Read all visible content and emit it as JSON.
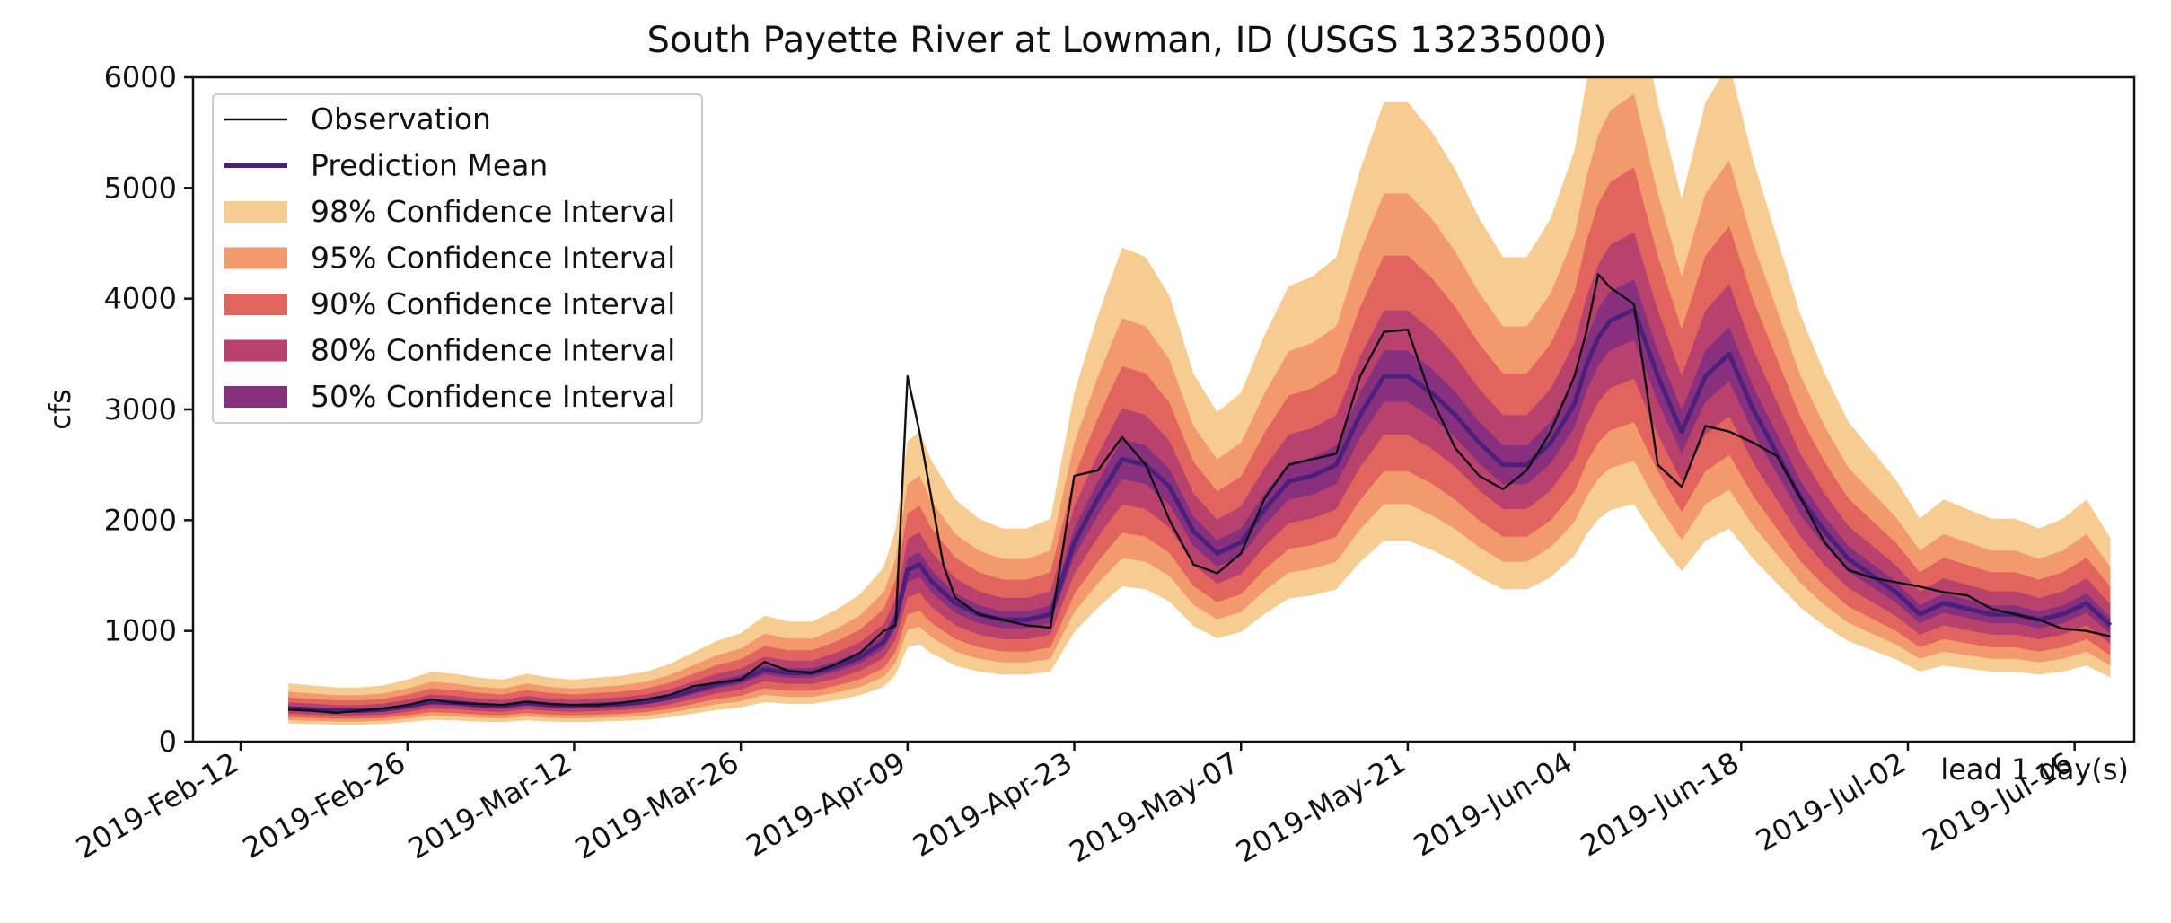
{
  "chart_data": {
    "type": "area",
    "title": "South Payette River at Lowman, ID (USGS 13235000)",
    "xlabel": "",
    "ylabel": "cfs",
    "annotation": "lead 1 day(s)",
    "xlim": [
      "2019-02-08",
      "2019-07-21"
    ],
    "ylim": [
      0,
      6000
    ],
    "yticks": [
      0,
      1000,
      2000,
      3000,
      4000,
      5000,
      6000
    ],
    "xticks": [
      "2019-Feb-12",
      "2019-Feb-26",
      "2019-Mar-12",
      "2019-Mar-26",
      "2019-Apr-09",
      "2019-Apr-23",
      "2019-May-07",
      "2019-May-21",
      "2019-Jun-04",
      "2019-Jun-18",
      "2019-Jul-02",
      "2019-Jul-16"
    ],
    "xtick_dates": [
      "2019-02-12",
      "2019-02-26",
      "2019-03-12",
      "2019-03-26",
      "2019-04-09",
      "2019-04-23",
      "2019-05-07",
      "2019-05-21",
      "2019-06-04",
      "2019-06-18",
      "2019-07-02",
      "2019-07-16"
    ],
    "grid": false,
    "legend_position": "top-left",
    "legend": [
      {
        "label": "Observation",
        "kind": "line",
        "color": "#111111"
      },
      {
        "label": "Prediction Mean",
        "kind": "line",
        "color": "#4b1f7a"
      },
      {
        "label": "98% Confidence Interval",
        "kind": "fill",
        "color": "#f6cc92"
      },
      {
        "label": "95% Confidence Interval",
        "kind": "fill",
        "color": "#f29a6b"
      },
      {
        "label": "90% Confidence Interval",
        "kind": "fill",
        "color": "#e2645f"
      },
      {
        "label": "80% Confidence Interval",
        "kind": "fill",
        "color": "#b9426c"
      },
      {
        "label": "50% Confidence Interval",
        "kind": "fill",
        "color": "#87307e"
      }
    ],
    "interval_widths": {
      "98%": [
        0.55,
        1.75
      ],
      "95%": [
        0.65,
        1.5
      ],
      "90%": [
        0.74,
        1.33
      ],
      "80%": [
        0.84,
        1.18
      ],
      "50%": [
        0.93,
        1.07
      ]
    },
    "series": [
      {
        "name": "Observation",
        "color": "#111111",
        "x": [
          "2019-02-16",
          "2019-02-18",
          "2019-02-20",
          "2019-02-22",
          "2019-02-24",
          "2019-02-26",
          "2019-02-28",
          "2019-03-02",
          "2019-03-04",
          "2019-03-06",
          "2019-03-08",
          "2019-03-10",
          "2019-03-12",
          "2019-03-14",
          "2019-03-16",
          "2019-03-18",
          "2019-03-20",
          "2019-03-22",
          "2019-03-24",
          "2019-03-26",
          "2019-03-28",
          "2019-03-30",
          "2019-04-01",
          "2019-04-03",
          "2019-04-05",
          "2019-04-07",
          "2019-04-08",
          "2019-04-09",
          "2019-04-10",
          "2019-04-11",
          "2019-04-12",
          "2019-04-13",
          "2019-04-15",
          "2019-04-17",
          "2019-04-19",
          "2019-04-21",
          "2019-04-23",
          "2019-04-25",
          "2019-04-27",
          "2019-04-29",
          "2019-05-01",
          "2019-05-03",
          "2019-05-05",
          "2019-05-07",
          "2019-05-09",
          "2019-05-11",
          "2019-05-13",
          "2019-05-15",
          "2019-05-17",
          "2019-05-19",
          "2019-05-21",
          "2019-05-23",
          "2019-05-25",
          "2019-05-27",
          "2019-05-29",
          "2019-05-31",
          "2019-06-02",
          "2019-06-04",
          "2019-06-05",
          "2019-06-06",
          "2019-06-07",
          "2019-06-09",
          "2019-06-11",
          "2019-06-13",
          "2019-06-15",
          "2019-06-17",
          "2019-06-19",
          "2019-06-21",
          "2019-06-23",
          "2019-06-25",
          "2019-06-27",
          "2019-06-29",
          "2019-07-01",
          "2019-07-03",
          "2019-07-05",
          "2019-07-07",
          "2019-07-09",
          "2019-07-11",
          "2019-07-13",
          "2019-07-15",
          "2019-07-17",
          "2019-07-19"
        ],
        "values": [
          290,
          280,
          260,
          280,
          300,
          330,
          380,
          350,
          340,
          330,
          360,
          340,
          330,
          330,
          350,
          380,
          420,
          500,
          530,
          560,
          720,
          640,
          620,
          700,
          800,
          1000,
          1050,
          3300,
          2800,
          2200,
          1600,
          1300,
          1150,
          1100,
          1050,
          1030,
          2400,
          2450,
          2750,
          2500,
          2000,
          1600,
          1520,
          1700,
          2200,
          2500,
          2550,
          2600,
          3300,
          3700,
          3720,
          3100,
          2650,
          2400,
          2280,
          2450,
          2800,
          3300,
          3700,
          4220,
          4100,
          3950,
          2500,
          2300,
          2850,
          2800,
          2700,
          2580,
          2200,
          1800,
          1550,
          1480,
          1440,
          1400,
          1350,
          1320,
          1200,
          1150,
          1100,
          1020,
          1000,
          950
        ]
      },
      {
        "name": "Prediction Mean",
        "color": "#4b1f7a",
        "x": [
          "2019-02-16",
          "2019-02-18",
          "2019-02-20",
          "2019-02-22",
          "2019-02-24",
          "2019-02-26",
          "2019-02-28",
          "2019-03-02",
          "2019-03-04",
          "2019-03-06",
          "2019-03-08",
          "2019-03-10",
          "2019-03-12",
          "2019-03-14",
          "2019-03-16",
          "2019-03-18",
          "2019-03-20",
          "2019-03-22",
          "2019-03-24",
          "2019-03-26",
          "2019-03-28",
          "2019-03-30",
          "2019-04-01",
          "2019-04-03",
          "2019-04-05",
          "2019-04-07",
          "2019-04-08",
          "2019-04-09",
          "2019-04-10",
          "2019-04-11",
          "2019-04-12",
          "2019-04-13",
          "2019-04-15",
          "2019-04-17",
          "2019-04-19",
          "2019-04-21",
          "2019-04-23",
          "2019-04-25",
          "2019-04-27",
          "2019-04-29",
          "2019-05-01",
          "2019-05-03",
          "2019-05-05",
          "2019-05-07",
          "2019-05-09",
          "2019-05-11",
          "2019-05-13",
          "2019-05-15",
          "2019-05-17",
          "2019-05-19",
          "2019-05-21",
          "2019-05-23",
          "2019-05-25",
          "2019-05-27",
          "2019-05-29",
          "2019-05-31",
          "2019-06-02",
          "2019-06-04",
          "2019-06-05",
          "2019-06-06",
          "2019-06-07",
          "2019-06-09",
          "2019-06-11",
          "2019-06-13",
          "2019-06-15",
          "2019-06-17",
          "2019-06-19",
          "2019-06-21",
          "2019-06-23",
          "2019-06-25",
          "2019-06-27",
          "2019-06-29",
          "2019-07-01",
          "2019-07-03",
          "2019-07-05",
          "2019-07-07",
          "2019-07-09",
          "2019-07-11",
          "2019-07-13",
          "2019-07-15",
          "2019-07-17",
          "2019-07-19"
        ],
        "values": [
          300,
          290,
          280,
          280,
          290,
          320,
          360,
          350,
          330,
          320,
          350,
          330,
          320,
          330,
          340,
          360,
          400,
          460,
          520,
          560,
          650,
          620,
          620,
          680,
          760,
          900,
          1100,
          1550,
          1600,
          1450,
          1350,
          1250,
          1150,
          1100,
          1100,
          1150,
          1800,
          2200,
          2550,
          2500,
          2300,
          1900,
          1700,
          1800,
          2100,
          2350,
          2400,
          2500,
          2950,
          3300,
          3300,
          3150,
          2950,
          2700,
          2500,
          2500,
          2700,
          3050,
          3400,
          3650,
          3800,
          3900,
          3300,
          2800,
          3300,
          3500,
          3000,
          2600,
          2200,
          1900,
          1650,
          1500,
          1350,
          1150,
          1250,
          1200,
          1150,
          1150,
          1100,
          1150,
          1250,
          1050
        ]
      }
    ]
  }
}
